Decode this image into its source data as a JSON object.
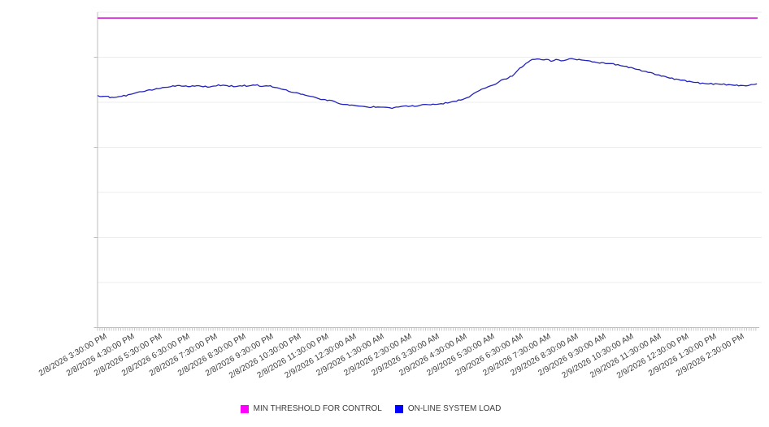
{
  "chart_data": {
    "type": "line",
    "title": "",
    "x_axis": {
      "tick_labels": [
        "2/8/2026 3:30:00 PM",
        "2/8/2026 4:30:00 PM",
        "2/8/2026 5:30:00 PM",
        "2/8/2026 6:30:00 PM",
        "2/8/2026 7:30:00 PM",
        "2/8/2026 8:30:00 PM",
        "2/8/2026 9:30:00 PM",
        "2/8/2026 10:30:00 PM",
        "2/8/2026 11:30:00 PM",
        "2/9/2026 12:30:00 AM",
        "2/9/2026 1:30:00 AM",
        "2/9/2026 2:30:00 AM",
        "2/9/2026 3:30:00 AM",
        "2/9/2026 4:30:00 AM",
        "2/9/2026 5:30:00 AM",
        "2/9/2026 6:30:00 AM",
        "2/9/2026 7:30:00 AM",
        "2/9/2026 8:30:00 AM",
        "2/9/2026 9:30:00 AM",
        "2/9/2026 10:30:00 AM",
        "2/9/2026 11:30:00 AM",
        "2/9/2026 12:30:00 PM",
        "2/9/2026 1:30:00 PM",
        "2/9/2026 2:30:00 PM"
      ],
      "major_tick_interval_hours": 1,
      "minor_tick_minutes": 5,
      "span_hours": 23.8,
      "label_rotation_deg": -30
    },
    "y_axis": {
      "min": 0,
      "max": 7,
      "gridline_interval": 1,
      "ticked_units": [
        0,
        2,
        4,
        6
      ],
      "labels_visible": false
    },
    "grid": "horizontal",
    "legend_position": "bottom",
    "series": [
      {
        "name": "MIN THRESHOLD FOR CONTROL",
        "style": "horizontal-threshold-line",
        "color": "#cc22cc",
        "value": 6.87
      },
      {
        "name": "ON-LINE SYSTEM LOAD",
        "style": "line",
        "color": "#2222bb",
        "points_t_hours_value": [
          [
            0,
            5.15
          ],
          [
            0.18,
            5.13
          ],
          [
            0.38,
            5.12
          ],
          [
            0.59,
            5.1
          ],
          [
            0.79,
            5.13
          ],
          [
            1.03,
            5.15
          ],
          [
            1.26,
            5.19
          ],
          [
            1.52,
            5.23
          ],
          [
            1.79,
            5.26
          ],
          [
            2.05,
            5.29
          ],
          [
            2.35,
            5.32
          ],
          [
            2.64,
            5.35
          ],
          [
            2.87,
            5.37
          ],
          [
            3.11,
            5.36
          ],
          [
            3.34,
            5.35
          ],
          [
            3.58,
            5.37
          ],
          [
            3.81,
            5.35
          ],
          [
            4.05,
            5.34
          ],
          [
            4.28,
            5.37
          ],
          [
            4.52,
            5.38
          ],
          [
            4.75,
            5.36
          ],
          [
            4.99,
            5.35
          ],
          [
            5.22,
            5.37
          ],
          [
            5.45,
            5.36
          ],
          [
            5.69,
            5.39
          ],
          [
            5.92,
            5.35
          ],
          [
            6.16,
            5.37
          ],
          [
            6.39,
            5.33
          ],
          [
            6.63,
            5.3
          ],
          [
            6.89,
            5.25
          ],
          [
            7.18,
            5.21
          ],
          [
            7.48,
            5.16
          ],
          [
            7.77,
            5.12
          ],
          [
            8.06,
            5.07
          ],
          [
            8.36,
            5.04
          ],
          [
            8.65,
            4.99
          ],
          [
            8.94,
            4.95
          ],
          [
            9.24,
            4.93
          ],
          [
            9.53,
            4.91
          ],
          [
            9.82,
            4.89
          ],
          [
            10.03,
            4.9
          ],
          [
            10.21,
            4.88
          ],
          [
            10.41,
            4.89
          ],
          [
            10.62,
            4.87
          ],
          [
            10.85,
            4.9
          ],
          [
            11.14,
            4.91
          ],
          [
            11.44,
            4.92
          ],
          [
            11.73,
            4.94
          ],
          [
            12.02,
            4.95
          ],
          [
            12.32,
            4.96
          ],
          [
            12.55,
            4.98
          ],
          [
            12.79,
            5.01
          ],
          [
            13.02,
            5.04
          ],
          [
            13.26,
            5.08
          ],
          [
            13.49,
            5.15
          ],
          [
            13.78,
            5.27
          ],
          [
            14.08,
            5.34
          ],
          [
            14.37,
            5.41
          ],
          [
            14.57,
            5.49
          ],
          [
            14.75,
            5.52
          ],
          [
            14.96,
            5.59
          ],
          [
            15.16,
            5.72
          ],
          [
            15.37,
            5.81
          ],
          [
            15.54,
            5.9
          ],
          [
            15.69,
            5.95
          ],
          [
            15.84,
            5.96
          ],
          [
            16.01,
            5.95
          ],
          [
            16.19,
            5.95
          ],
          [
            16.36,
            5.92
          ],
          [
            16.54,
            5.94
          ],
          [
            16.72,
            5.93
          ],
          [
            16.92,
            5.95
          ],
          [
            17.1,
            5.96
          ],
          [
            17.3,
            5.95
          ],
          [
            17.51,
            5.94
          ],
          [
            17.71,
            5.92
          ],
          [
            17.92,
            5.89
          ],
          [
            18.12,
            5.88
          ],
          [
            18.33,
            5.87
          ],
          [
            18.53,
            5.86
          ],
          [
            18.77,
            5.83
          ],
          [
            19.0,
            5.8
          ],
          [
            19.24,
            5.77
          ],
          [
            19.47,
            5.73
          ],
          [
            19.71,
            5.69
          ],
          [
            19.94,
            5.66
          ],
          [
            20.18,
            5.61
          ],
          [
            20.41,
            5.58
          ],
          [
            20.65,
            5.54
          ],
          [
            20.88,
            5.51
          ],
          [
            21.11,
            5.49
          ],
          [
            21.35,
            5.46
          ],
          [
            21.58,
            5.44
          ],
          [
            21.82,
            5.42
          ],
          [
            22.05,
            5.41
          ],
          [
            22.29,
            5.41
          ],
          [
            22.52,
            5.4
          ],
          [
            22.76,
            5.39
          ],
          [
            22.99,
            5.38
          ],
          [
            23.2,
            5.37
          ],
          [
            23.4,
            5.37
          ],
          [
            23.58,
            5.39
          ],
          [
            23.7,
            5.4
          ],
          [
            23.79,
            5.41
          ]
        ]
      }
    ],
    "legend": {
      "items": [
        {
          "label": "MIN THRESHOLD FOR CONTROL",
          "swatch_color": "#ff00ff"
        },
        {
          "label": "ON-LINE SYSTEM LOAD",
          "swatch_color": "#0000ff"
        }
      ]
    },
    "colors": {
      "background": "#ffffff",
      "gridline": "#ececec",
      "axis_line": "#bdbdbd",
      "minor_tick": "#c8c8c8",
      "label_text": "#3c3c3c"
    }
  }
}
